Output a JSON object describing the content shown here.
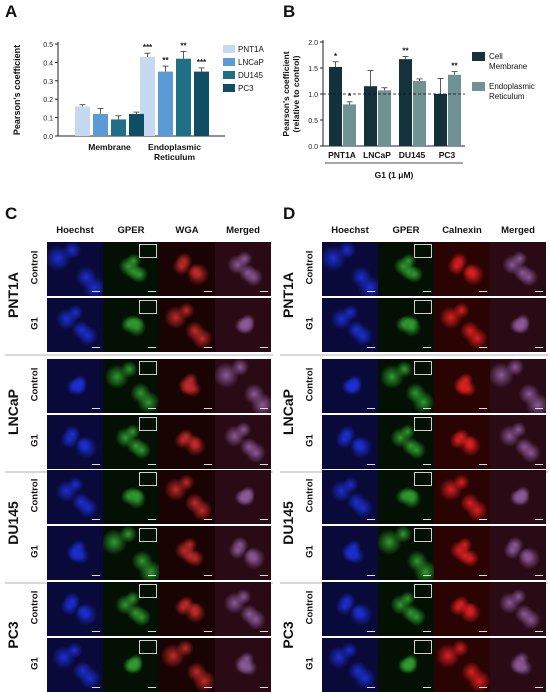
{
  "panels": {
    "a": "A",
    "b": "B",
    "c": "C",
    "d": "D"
  },
  "chart_a": {
    "ylabel": "Pearson's coefficient",
    "yticks": [
      "0.0",
      "0.1",
      "0.2",
      "0.3",
      "0.4",
      "0.5"
    ],
    "group_labels": [
      [
        "Membrane"
      ],
      [
        "Endoplasmic",
        "Reticulum"
      ]
    ],
    "legend": [
      "PNT1A",
      "LNCaP",
      "DU145",
      "PC3"
    ],
    "colors": [
      "#c5d9f1",
      "#5b9bd5",
      "#1f6f87",
      "#0e4d64"
    ],
    "sig_labels": [
      "***",
      "**",
      "**",
      "***"
    ]
  },
  "chart_b": {
    "ylabel": [
      "Pearson's coefficient",
      "(relative to control)"
    ],
    "yticks": [
      "0.0",
      "0.5",
      "1.0",
      "1.5",
      "2.0"
    ],
    "categories": [
      "PNT1A",
      "LNCaP",
      "DU145",
      "PC3"
    ],
    "xlabel": "G1 (1 μM)",
    "legend": [
      [
        "Cell",
        "Membrane"
      ],
      [
        "Endoplasmic",
        "Reticulum"
      ]
    ],
    "colors": [
      "#13323c",
      "#6f9292"
    ],
    "sig_labels": [
      "*",
      "*",
      "**",
      "**"
    ]
  },
  "chart_data": [
    {
      "type": "bar",
      "panel": "A",
      "categories": [
        "Membrane",
        "Endoplasmic Reticulum"
      ],
      "series": [
        {
          "name": "PNT1A",
          "values": [
            0.16,
            0.43
          ],
          "errors": [
            0.01,
            0.02
          ]
        },
        {
          "name": "LNCaP",
          "values": [
            0.12,
            0.35
          ],
          "errors": [
            0.03,
            0.03
          ]
        },
        {
          "name": "DU145",
          "values": [
            0.09,
            0.42
          ],
          "errors": [
            0.02,
            0.04
          ]
        },
        {
          "name": "PC3",
          "values": [
            0.12,
            0.35
          ],
          "errors": [
            0.01,
            0.02
          ]
        }
      ],
      "ylabel": "Pearson's coefficient",
      "ylim": [
        0,
        0.5
      ],
      "annotations": [
        "***",
        "**",
        "**",
        "***"
      ],
      "legend_position": "right"
    },
    {
      "type": "bar",
      "panel": "B",
      "categories": [
        "PNT1A",
        "LNCaP",
        "DU145",
        "PC3"
      ],
      "series": [
        {
          "name": "Cell Membrane",
          "values": [
            1.52,
            1.15,
            1.67,
            1.0
          ],
          "errors": [
            0.1,
            0.3,
            0.05,
            0.3
          ]
        },
        {
          "name": "Endoplasmic Reticulum",
          "values": [
            0.8,
            1.07,
            1.25,
            1.37
          ],
          "errors": [
            0.05,
            0.05,
            0.04,
            0.06
          ]
        }
      ],
      "xlabel": "G1 (1 μM)",
      "ylabel": "Pearson's coefficient (relative to control)",
      "ylim": [
        0,
        2.0
      ],
      "reference_line": 1.0,
      "annotations": [
        "*",
        "*",
        "**",
        "**"
      ],
      "legend_position": "right"
    }
  ],
  "micro_c": {
    "columns": [
      "Hoechst",
      "GPER",
      "WGA",
      "Merged"
    ],
    "cells": [
      "PNT1A",
      "LNCaP",
      "DU145",
      "PC3"
    ],
    "conditions": [
      "Control",
      "G1"
    ]
  },
  "micro_d": {
    "columns": [
      "Hoechst",
      "GPER",
      "Calnexin",
      "Merged"
    ],
    "cells": [
      "PNT1A",
      "LNCaP",
      "DU145",
      "PC3"
    ],
    "conditions": [
      "Control",
      "G1"
    ]
  }
}
